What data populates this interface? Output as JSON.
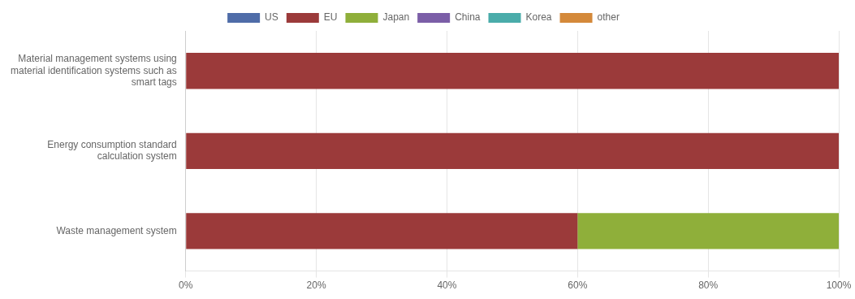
{
  "chart_data": {
    "type": "bar",
    "orientation": "horizontal",
    "stacked": true,
    "categories": [
      "Material management systems using\nmaterial identification systems such as\nsmart tags",
      "Energy consumption standard\ncalculation system",
      "Waste management system"
    ],
    "series": [
      {
        "name": "US",
        "color": "#4F6CA8",
        "values": [
          0,
          0,
          0
        ]
      },
      {
        "name": "EU",
        "color": "#9B3A3A",
        "values": [
          100,
          100,
          60
        ]
      },
      {
        "name": "Japan",
        "color": "#8FAF3A",
        "values": [
          0,
          0,
          40
        ]
      },
      {
        "name": "China",
        "color": "#7B5EA7",
        "values": [
          0,
          0,
          0
        ]
      },
      {
        "name": "Korea",
        "color": "#4AACAA",
        "values": [
          0,
          0,
          0
        ]
      },
      {
        "name": "other",
        "color": "#D4893A",
        "values": [
          0,
          0,
          0
        ]
      }
    ],
    "xlim": [
      0,
      100
    ],
    "xticks": [
      {
        "value": 0,
        "label": "0%"
      },
      {
        "value": 20,
        "label": "20%"
      },
      {
        "value": 40,
        "label": "40%"
      },
      {
        "value": 60,
        "label": "60%"
      },
      {
        "value": 80,
        "label": "80%"
      },
      {
        "value": 100,
        "label": "100%"
      }
    ],
    "grid": "x",
    "legend": "top"
  }
}
